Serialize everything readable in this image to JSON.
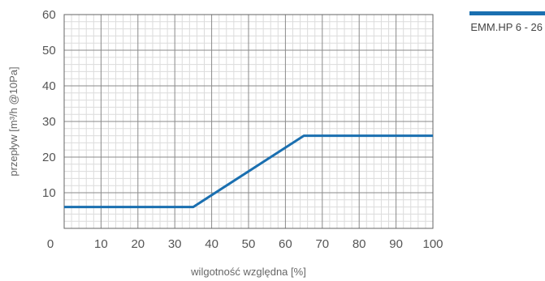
{
  "chart_data": {
    "type": "line",
    "xlabel": "wilgotność względna [%]",
    "ylabel": "przepływ [m³/h @10Pa]",
    "xlim": [
      0,
      100
    ],
    "ylim": [
      0,
      60
    ],
    "x_ticks": [
      "0",
      "10",
      "20",
      "30",
      "40",
      "50",
      "60",
      "70",
      "80",
      "90",
      "100"
    ],
    "y_ticks": [
      "10",
      "20",
      "30",
      "40",
      "50",
      "60"
    ],
    "grid": true,
    "legend_position": "top-right",
    "series": [
      {
        "name": "EMM.HP 6 - 26",
        "color": "#1a6fb0",
        "x": [
          0,
          35,
          65,
          100
        ],
        "y": [
          6,
          6,
          26,
          26
        ]
      }
    ]
  }
}
